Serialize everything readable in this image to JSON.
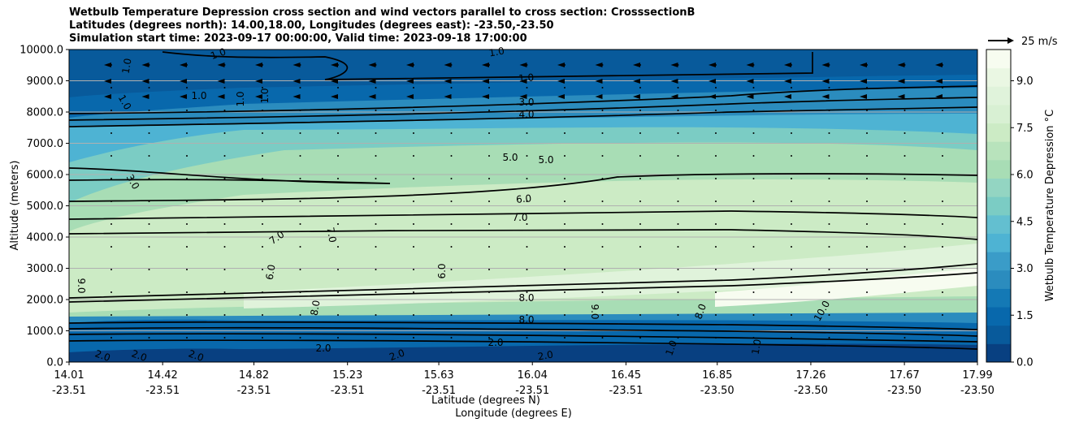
{
  "chart_data": {
    "type": "contour",
    "title_lines": [
      "Wetbulb Temperature Depression cross section and wind vectors parallel to cross section: CrosssectionB",
      "Latitudes (degrees north): 14.00,18.00, Longitudes (degrees east): -23.50,-23.50",
      "Simulation start time: 2023-09-17 00:00:00, Valid time: 2023-09-18 17:00:00"
    ],
    "ylabel": "Altitude (meters)",
    "xlabel_lines": [
      "Latitude (degrees N)",
      "Longitude (degrees E)"
    ],
    "ylim": [
      0,
      10000
    ],
    "y_ticks": [
      0,
      1000,
      2000,
      3000,
      4000,
      5000,
      6000,
      7000,
      8000,
      9000,
      10000
    ],
    "y_tick_labels": [
      "0.0",
      "1000.0",
      "2000.0",
      "3000.0",
      "4000.0",
      "5000.0",
      "6000.0",
      "7000.0",
      "8000.0",
      "9000.0",
      "10000.0"
    ],
    "xlim": [
      14.01,
      17.99
    ],
    "x_ticks": [
      {
        "lat": "14.01",
        "lon": "-23.51"
      },
      {
        "lat": "14.42",
        "lon": "-23.51"
      },
      {
        "lat": "14.82",
        "lon": "-23.51"
      },
      {
        "lat": "15.23",
        "lon": "-23.51"
      },
      {
        "lat": "15.63",
        "lon": "-23.51"
      },
      {
        "lat": "16.04",
        "lon": "-23.51"
      },
      {
        "lat": "16.45",
        "lon": "-23.51"
      },
      {
        "lat": "16.85",
        "lon": "-23.50"
      },
      {
        "lat": "17.26",
        "lon": "-23.50"
      },
      {
        "lat": "17.67",
        "lon": "-23.50"
      },
      {
        "lat": "17.99",
        "lon": "-23.50"
      }
    ],
    "colorbar": {
      "label": "Wetbulb Temperature Depression $^\\circ$C",
      "label_display": "Wetbulb Temperature Depression °C",
      "range": [
        0,
        10
      ],
      "ticks": [
        "0.0",
        "1.5",
        "3.0",
        "4.5",
        "6.0",
        "7.5",
        "9.0"
      ],
      "colors": [
        "#084081",
        "#085a9b",
        "#0868ac",
        "#1479b5",
        "#2b8cbe",
        "#3a9cc8",
        "#4eb3d3",
        "#63bfd0",
        "#7bccc4",
        "#93d5c2",
        "#a8ddb5",
        "#b8e3bc",
        "#ccebc5",
        "#d8f0d3",
        "#e0f3db",
        "#eaf7e3",
        "#f7fcf0"
      ]
    },
    "quiver_key": {
      "label": "25 m/s"
    },
    "grid": "horizontal",
    "contour_labels": [
      "1.0",
      "3.0",
      "4.0",
      "5.0",
      "6.0",
      "7.0",
      "8.0",
      "9.0",
      "10.0",
      "2.0"
    ]
  }
}
